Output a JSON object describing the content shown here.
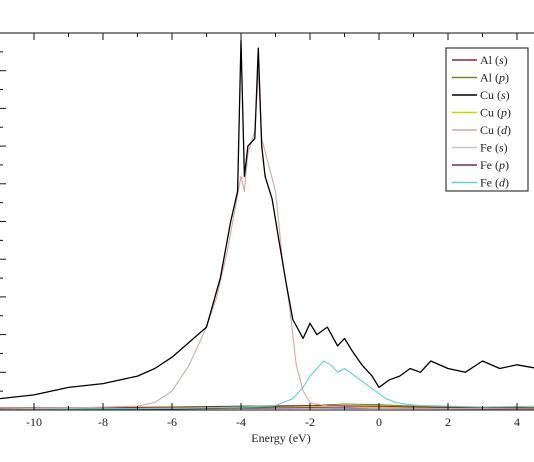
{
  "chart_data": {
    "type": "line",
    "title": "",
    "xlabel": "Energy (eV)",
    "ylabel": "",
    "xlim": [
      -11.1,
      4.7
    ],
    "ylim": [
      0,
      1.0
    ],
    "x_ticks": [
      -10,
      -8,
      -6,
      -4,
      -2,
      0,
      2,
      4
    ],
    "x_tick_labels": [
      "-10",
      "-8",
      "-6",
      "-4",
      "-2",
      "0",
      "2",
      "4"
    ],
    "grid": false,
    "legend_position": "top-right",
    "series": [
      {
        "name": "Al (s)",
        "color": "#8b2a2a",
        "x": [
          -11,
          -8,
          -6,
          -4,
          -2,
          0,
          1,
          2,
          4.6
        ],
        "y": [
          0.005,
          0.006,
          0.008,
          0.01,
          0.012,
          0.01,
          0.008,
          0.006,
          0.005
        ]
      },
      {
        "name": "Al (p)",
        "color": "#6b8e23",
        "x": [
          -11,
          -6,
          -4,
          -2,
          -1,
          0,
          1,
          2,
          4.6
        ],
        "y": [
          0.003,
          0.004,
          0.006,
          0.012,
          0.016,
          0.014,
          0.01,
          0.008,
          0.006
        ]
      },
      {
        "name": "Cu (s)",
        "color": "#000000",
        "x": [
          -11,
          -10,
          -9,
          -8,
          -7,
          -6.5,
          -6,
          -5.5,
          -5,
          -4.6,
          -4.3,
          -4.1,
          -4.0,
          -3.9,
          -3.8,
          -3.6,
          -3.5,
          -3.4,
          -3.3,
          -3.1,
          -2.9,
          -2.7,
          -2.5,
          -2.2,
          -2.0,
          -1.8,
          -1.5,
          -1.2,
          -1.0,
          -0.8,
          -0.5,
          -0.2,
          0,
          0.3,
          0.6,
          0.9,
          1.2,
          1.5,
          2.0,
          2.5,
          3.0,
          3.5,
          4.0,
          4.6
        ],
        "y": [
          0.03,
          0.04,
          0.06,
          0.07,
          0.09,
          0.11,
          0.14,
          0.18,
          0.22,
          0.35,
          0.5,
          0.58,
          0.98,
          0.62,
          0.7,
          0.72,
          0.96,
          0.7,
          0.62,
          0.56,
          0.45,
          0.34,
          0.24,
          0.19,
          0.23,
          0.2,
          0.22,
          0.17,
          0.19,
          0.16,
          0.12,
          0.09,
          0.06,
          0.08,
          0.09,
          0.11,
          0.1,
          0.13,
          0.11,
          0.1,
          0.13,
          0.11,
          0.12,
          0.11
        ]
      },
      {
        "name": "Cu (p)",
        "color": "#d4d000",
        "x": [
          -11,
          -6,
          -4,
          -2,
          0,
          2,
          4.6
        ],
        "y": [
          0.004,
          0.006,
          0.008,
          0.01,
          0.008,
          0.006,
          0.005
        ]
      },
      {
        "name": "Cu (d)",
        "color": "#d4a8a8",
        "x": [
          -11,
          -9,
          -7,
          -6.5,
          -6,
          -5.5,
          -5.2,
          -5.0,
          -4.7,
          -4.4,
          -4.2,
          -4.0,
          -3.9,
          -3.8,
          -3.6,
          -3.5,
          -3.4,
          -3.2,
          -3.0,
          -2.8,
          -2.6,
          -2.4,
          -2.2,
          -2.0,
          -1.5,
          -1.0,
          0,
          2,
          4.6
        ],
        "y": [
          0.003,
          0.005,
          0.01,
          0.02,
          0.05,
          0.12,
          0.18,
          0.22,
          0.3,
          0.42,
          0.52,
          0.62,
          0.58,
          0.68,
          0.74,
          0.9,
          0.72,
          0.65,
          0.58,
          0.4,
          0.28,
          0.12,
          0.05,
          0.02,
          0.01,
          0.008,
          0.005,
          0.004,
          0.003
        ]
      },
      {
        "name": "Fe (s)",
        "color": "#c8c8c8",
        "x": [
          -11,
          -6,
          -4,
          -2,
          0,
          2,
          4.6
        ],
        "y": [
          0.002,
          0.003,
          0.004,
          0.005,
          0.004,
          0.003,
          0.003
        ]
      },
      {
        "name": "Fe (p)",
        "color": "#6a2a6a",
        "x": [
          -11,
          -6,
          -4,
          -2,
          0,
          2,
          4.6
        ],
        "y": [
          0.002,
          0.003,
          0.005,
          0.006,
          0.005,
          0.004,
          0.003
        ]
      },
      {
        "name": "Fe (d)",
        "color": "#5fcfd6",
        "x": [
          -11,
          -6,
          -4,
          -3,
          -2.5,
          -2.2,
          -2.0,
          -1.8,
          -1.6,
          -1.4,
          -1.2,
          -1.0,
          -0.7,
          -0.4,
          -0.1,
          0.2,
          0.5,
          0.8,
          1.2,
          2,
          3,
          4.6
        ],
        "y": [
          0.002,
          0.004,
          0.008,
          0.012,
          0.03,
          0.06,
          0.09,
          0.11,
          0.13,
          0.12,
          0.1,
          0.11,
          0.09,
          0.07,
          0.05,
          0.03,
          0.02,
          0.015,
          0.012,
          0.01,
          0.008,
          0.01
        ]
      }
    ]
  }
}
